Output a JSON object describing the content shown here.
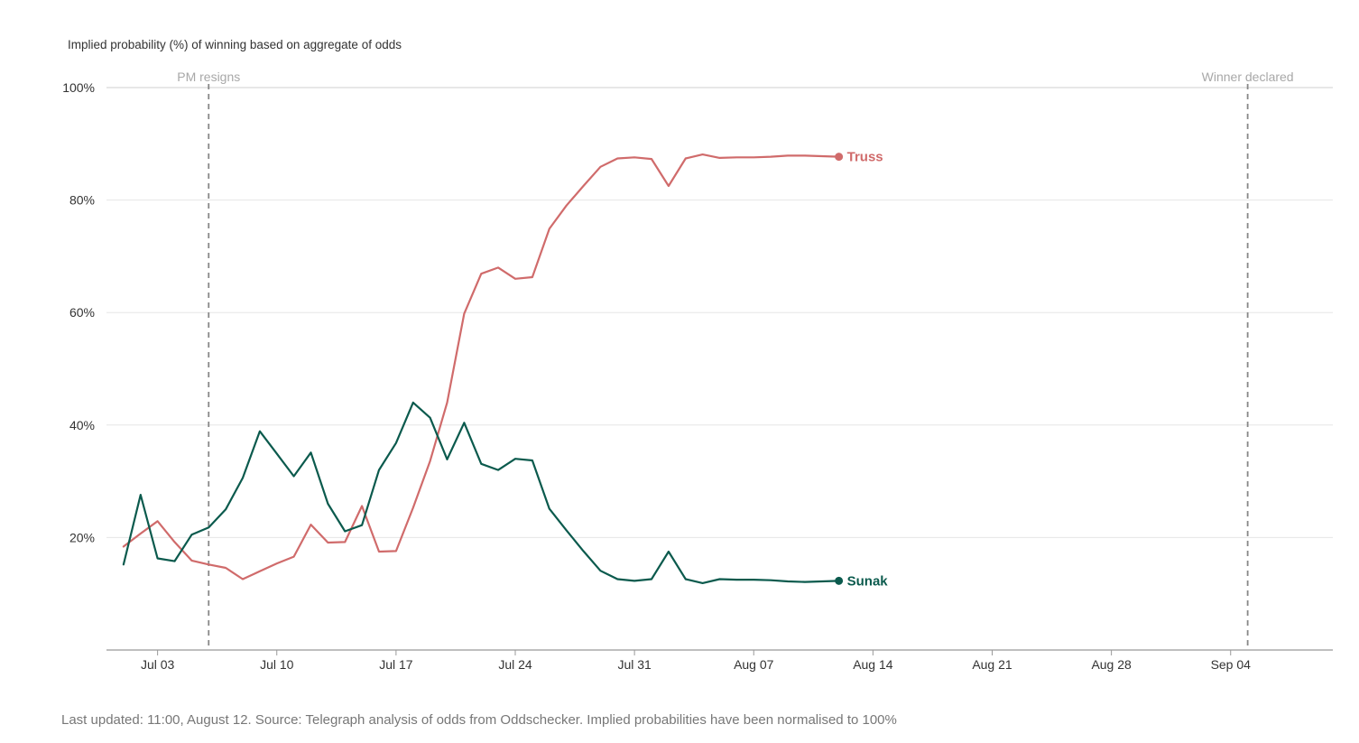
{
  "chart_data": {
    "type": "line",
    "subtitle": "Implied probability (%) of winning based on aggregate of odds",
    "ylim": [
      0,
      100
    ],
    "y_ticks": [
      20,
      40,
      60,
      80,
      100
    ],
    "y_tick_labels": [
      "20%",
      "40%",
      "60%",
      "80%",
      "100%"
    ],
    "x_domain": [
      "2022-06-30",
      "2022-09-10"
    ],
    "x_ticks": [
      {
        "date": "2022-07-03",
        "label": "Jul 03"
      },
      {
        "date": "2022-07-10",
        "label": "Jul 10"
      },
      {
        "date": "2022-07-17",
        "label": "Jul 17"
      },
      {
        "date": "2022-07-24",
        "label": "Jul 24"
      },
      {
        "date": "2022-07-31",
        "label": "Jul 31"
      },
      {
        "date": "2022-08-07",
        "label": "Aug 07"
      },
      {
        "date": "2022-08-14",
        "label": "Aug 14"
      },
      {
        "date": "2022-08-21",
        "label": "Aug 21"
      },
      {
        "date": "2022-08-28",
        "label": "Aug 28"
      },
      {
        "date": "2022-09-04",
        "label": "Sep 04"
      }
    ],
    "grid": true,
    "annotations": [
      {
        "date": "2022-07-06",
        "label": "PM resigns"
      },
      {
        "date": "2022-09-05",
        "label": "Winner declared"
      }
    ],
    "x": [
      "2022-07-01",
      "2022-07-02",
      "2022-07-03",
      "2022-07-04",
      "2022-07-05",
      "2022-07-06",
      "2022-07-07",
      "2022-07-08",
      "2022-07-09",
      "2022-07-10",
      "2022-07-11",
      "2022-07-12",
      "2022-07-13",
      "2022-07-14",
      "2022-07-15",
      "2022-07-16",
      "2022-07-17",
      "2022-07-18",
      "2022-07-19",
      "2022-07-20",
      "2022-07-21",
      "2022-07-22",
      "2022-07-23",
      "2022-07-24",
      "2022-07-25",
      "2022-07-26",
      "2022-07-27",
      "2022-07-28",
      "2022-07-29",
      "2022-07-30",
      "2022-07-31",
      "2022-08-01",
      "2022-08-02",
      "2022-08-03",
      "2022-08-04",
      "2022-08-05",
      "2022-08-06",
      "2022-08-07",
      "2022-08-08",
      "2022-08-09",
      "2022-08-10",
      "2022-08-11",
      "2022-08-12"
    ],
    "series": [
      {
        "name": "Truss",
        "color": "#d06b6b",
        "values": [
          18.4,
          20.7,
          22.9,
          19.2,
          15.9,
          15.2,
          14.6,
          12.6,
          14.0,
          15.4,
          16.6,
          22.3,
          19.1,
          19.2,
          25.6,
          17.5,
          17.6,
          25.3,
          33.6,
          44.0,
          59.8,
          66.9,
          68.0,
          66.0,
          66.3,
          74.9,
          79.0,
          82.5,
          85.9,
          87.4,
          87.6,
          87.3,
          82.5,
          87.4,
          88.1,
          87.5,
          87.6,
          87.6,
          87.7,
          87.9,
          87.9,
          87.8,
          87.7
        ]
      },
      {
        "name": "Sunak",
        "color": "#0b5a4d",
        "values": [
          15.2,
          27.6,
          16.3,
          15.8,
          20.5,
          21.8,
          25.0,
          30.6,
          38.9,
          34.9,
          30.9,
          35.1,
          26.0,
          21.1,
          22.2,
          32.0,
          36.8,
          44.0,
          41.3,
          33.9,
          40.4,
          33.1,
          32.0,
          34.0,
          33.7,
          25.1,
          21.3,
          17.6,
          14.1,
          12.6,
          12.3,
          12.6,
          17.5,
          12.6,
          11.9,
          12.6,
          12.5,
          12.5,
          12.4,
          12.2,
          12.1,
          12.2,
          12.3
        ]
      }
    ]
  },
  "footer": "Last updated: 11:00, August 12. Source: Telegraph analysis of odds from Oddschecker. Implied probabilities have been normalised to 100%"
}
